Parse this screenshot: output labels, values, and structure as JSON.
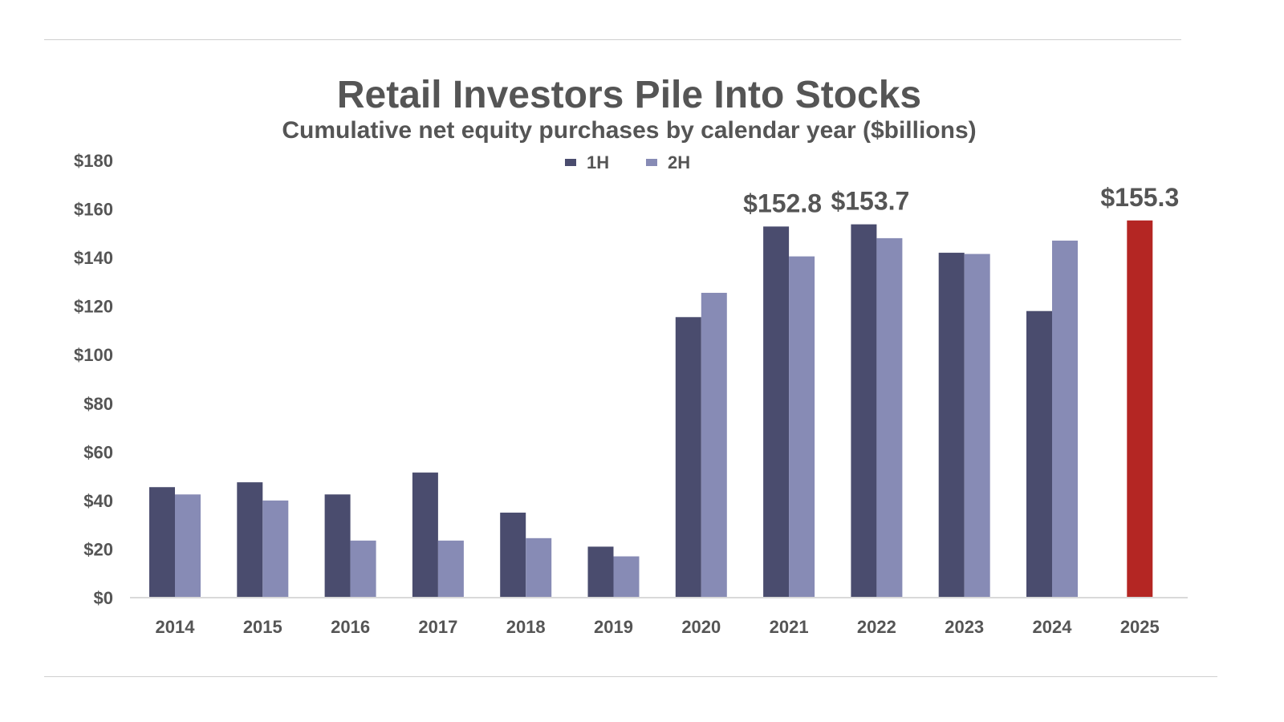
{
  "chart_data": {
    "type": "bar",
    "title": "Retail Investors Pile Into Stocks",
    "subtitle": "Cumulative net equity purchases by calendar year ($billions)",
    "xlabel": "",
    "ylabel": "",
    "ylim": [
      0,
      180
    ],
    "yticks": [
      0,
      20,
      40,
      60,
      80,
      100,
      120,
      140,
      160,
      180
    ],
    "ytick_labels": [
      "$0",
      "$20",
      "$40",
      "$60",
      "$80",
      "$100",
      "$120",
      "$140",
      "$160",
      "$180"
    ],
    "grid": false,
    "legend": {
      "position": "top-center",
      "entries": [
        "1H",
        "2H"
      ]
    },
    "categories": [
      "2014",
      "2015",
      "2016",
      "2017",
      "2018",
      "2019",
      "2020",
      "2021",
      "2022",
      "2023",
      "2024",
      "2025"
    ],
    "series": [
      {
        "name": "1H",
        "color": "#4a4c6e",
        "values": [
          45.5,
          47.5,
          42.5,
          51.5,
          35,
          21,
          115.5,
          152.8,
          153.7,
          142,
          118,
          155.3
        ]
      },
      {
        "name": "2H",
        "color": "#878bb5",
        "values": [
          42.5,
          40,
          23.5,
          23.5,
          24.5,
          17,
          125.5,
          140.5,
          148,
          141.5,
          147,
          null
        ]
      }
    ],
    "highlight": {
      "category": "2025",
      "series": "1H",
      "color": "#b42623"
    },
    "annotations": [
      {
        "category": "2021",
        "text": "$152.8"
      },
      {
        "category": "2022",
        "text": "$153.7"
      },
      {
        "category": "2025",
        "text": "$155.3"
      }
    ]
  }
}
